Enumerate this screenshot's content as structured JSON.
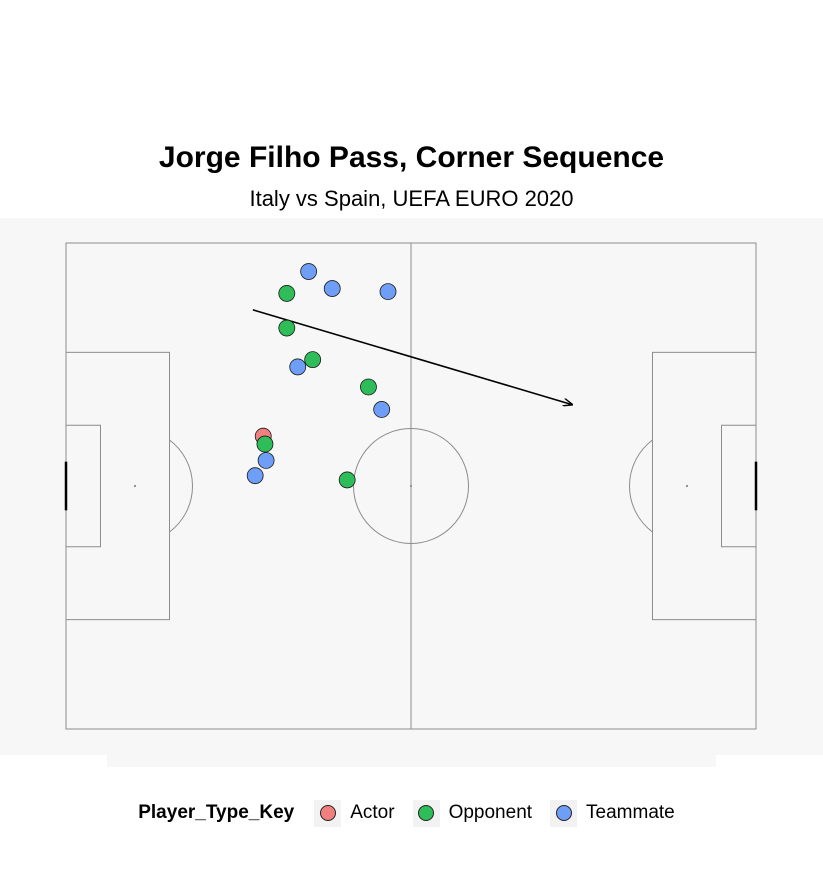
{
  "chart_data": {
    "type": "scatter",
    "title": "Jorge Filho Pass, Corner Sequence",
    "subtitle": "Italy vs Spain, UEFA EURO 2020",
    "xlim": [
      0,
      120
    ],
    "ylim": [
      0,
      80
    ],
    "grid": false,
    "legend_position": "bottom",
    "legend": {
      "title": "Player_Type_Key",
      "entries": [
        "Actor",
        "Opponent",
        "Teammate"
      ]
    },
    "colors": {
      "Actor": "#f08080",
      "Opponent": "#2ebd59",
      "Teammate": "#6f9ef6"
    },
    "series": [
      {
        "name": "Actor",
        "x": [
          34.3
        ],
        "y": [
          48.2
        ]
      },
      {
        "name": "Opponent",
        "x": [
          38.4,
          38.4,
          42.9,
          52.6,
          34.6,
          48.9
        ],
        "y": [
          71.7,
          66.0,
          60.8,
          56.3,
          46.9,
          41.0
        ]
      },
      {
        "name": "Teammate",
        "x": [
          42.2,
          46.3,
          56.0,
          40.3,
          54.9,
          34.8,
          32.9
        ],
        "y": [
          75.3,
          72.5,
          72.0,
          59.6,
          52.6,
          44.2,
          41.7
        ]
      }
    ],
    "pass": {
      "start": [
        32.5,
        69.0
      ],
      "end": [
        88.0,
        53.4
      ]
    }
  }
}
